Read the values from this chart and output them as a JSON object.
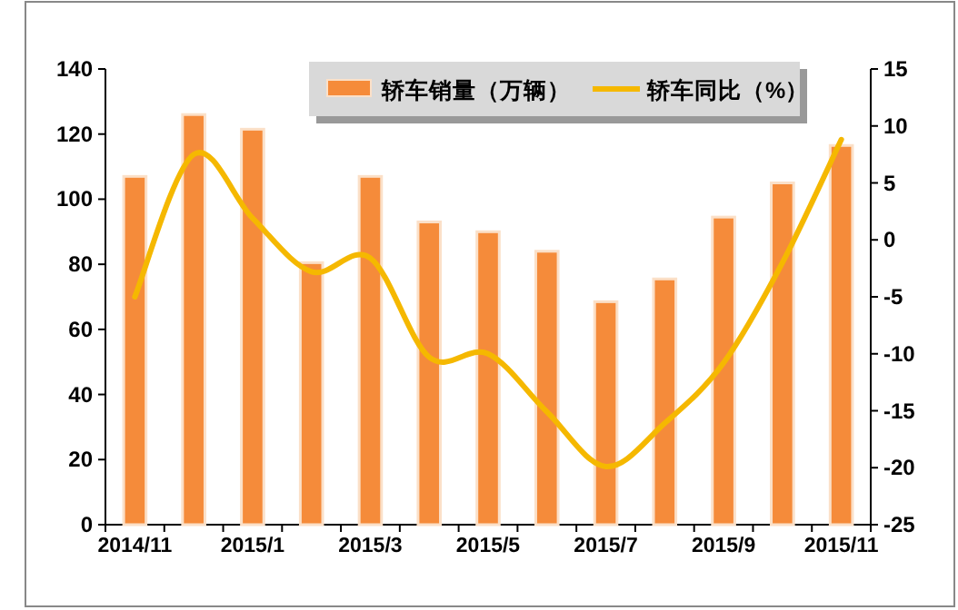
{
  "chart_data": {
    "type": "bar",
    "categories": [
      "2014/11",
      null,
      "2015/1",
      null,
      "2015/3",
      null,
      "2015/5",
      null,
      "2015/7",
      null,
      "2015/9",
      null,
      "2015/11"
    ],
    "series": [
      {
        "name": "轿车销量（万辆）",
        "color": "#f58b3a",
        "values": [
          107,
          126,
          121.5,
          80.5,
          107,
          93,
          90,
          84,
          68.5,
          75.5,
          94.5,
          105,
          116.5
        ]
      },
      {
        "name": "轿车同比（%）",
        "type": "line",
        "axis": "y2",
        "color": "#f5b800",
        "values": [
          -5,
          7.5,
          1.9,
          -2.8,
          -1.6,
          -10.3,
          -10,
          -15.1,
          -19.9,
          -16.1,
          -10.8,
          -2,
          8.8
        ]
      }
    ],
    "ylim": [
      0,
      140
    ],
    "yticks": [
      0,
      20,
      40,
      60,
      80,
      100,
      120,
      140
    ],
    "y2lim": [
      -25,
      15
    ],
    "y2ticks": [
      -25,
      -20,
      -15,
      -10,
      -5,
      0,
      5,
      10,
      15
    ],
    "grid": false,
    "legend": "top"
  }
}
